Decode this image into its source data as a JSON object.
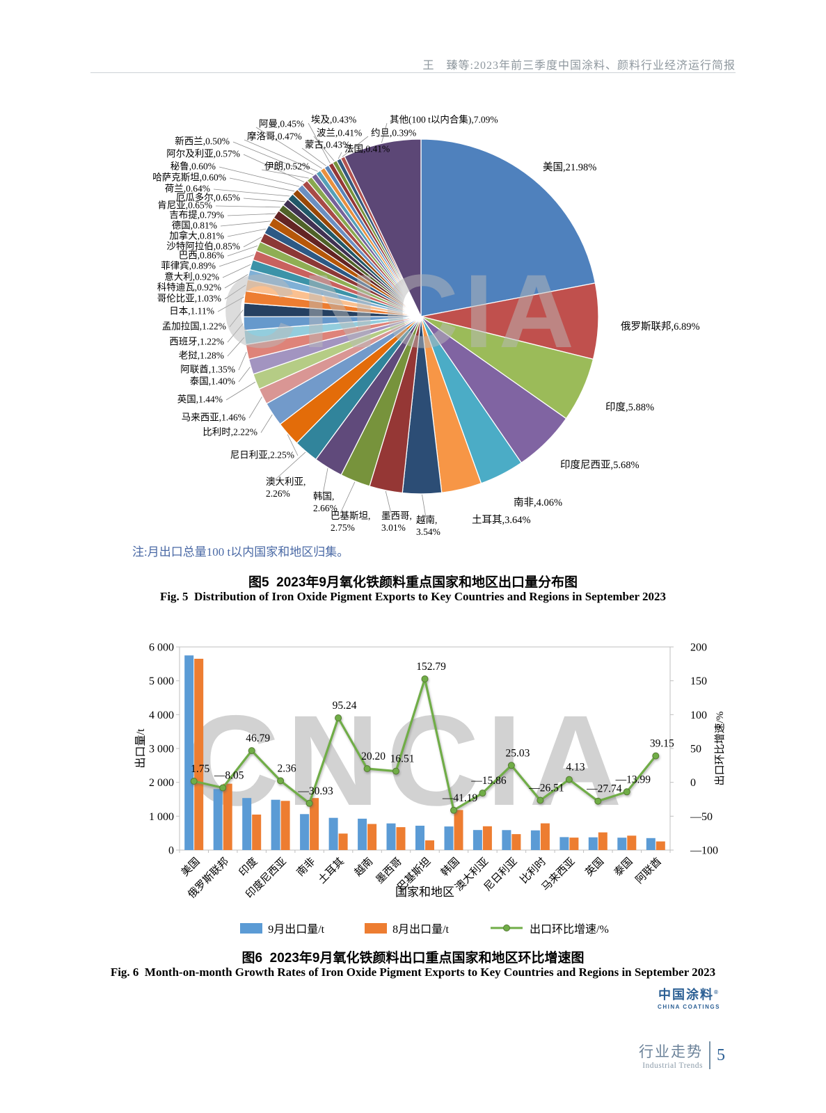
{
  "header": {
    "title": "王　臻等:2023年前三季度中国涂料、颜料行业经济运行简报"
  },
  "pie_note": "注:月出口总量100 t以内国家和地区归集。",
  "figure5": {
    "caption_zh": "图5  2023年9月氧化铁颜料重点国家和地区出口量分布图",
    "caption_en": "Fig. 5  Distribution of Iron Oxide Pigment Exports to Key Countries and Regions in September 2023"
  },
  "figure6": {
    "caption_zh": "图6  2023年9月氧化铁颜料出口重点国家和地区环比增速图",
    "caption_en": "Fig. 6  Month-on-month Growth Rates of Iron Oxide Pigment Exports to Key Countries and Regions in September 2023"
  },
  "footer": {
    "brand_zh": "中国涂料",
    "brand_en": "CHINA COATINGS",
    "section_zh": "行业走势",
    "section_en": "Industrial Trends",
    "page_number": "5"
  },
  "watermark": "CNCIA",
  "chart_data": [
    {
      "type": "pie",
      "title": "2023年9月氧化铁颜料重点国家和地区出口量分布图",
      "unit": "%",
      "labels": [
        "美国",
        "俄罗斯联邦",
        "印度",
        "印度尼西亚",
        "南非",
        "土耳其",
        "越南",
        "墨西哥",
        "巴基斯坦",
        "韩国",
        "澳大利亚",
        "尼日利亚",
        "比利时",
        "马来西亚",
        "英国",
        "泰国",
        "阿联酋",
        "老挝",
        "西班牙",
        "孟加拉国",
        "日本",
        "哥伦比亚",
        "科特迪瓦",
        "意大利",
        "菲律宾",
        "巴西",
        "沙特阿拉伯",
        "加拿大",
        "德国",
        "吉布提",
        "肯尼亚",
        "厄瓜多尔",
        "荷兰",
        "哈萨克斯坦",
        "秘鲁",
        "阿尔及利亚",
        "伊朗",
        "新西兰",
        "摩洛哥",
        "阿曼",
        "蒙古",
        "埃及",
        "波兰",
        "法国",
        "约旦",
        "其他(100 t以内合集)"
      ],
      "values": [
        21.98,
        6.89,
        5.88,
        5.68,
        4.06,
        3.64,
        3.54,
        3.01,
        2.75,
        2.66,
        2.26,
        2.25,
        2.22,
        1.46,
        1.44,
        1.4,
        1.35,
        1.28,
        1.22,
        1.22,
        1.11,
        1.03,
        0.92,
        0.92,
        0.89,
        0.86,
        0.85,
        0.81,
        0.81,
        0.79,
        0.65,
        0.65,
        0.64,
        0.6,
        0.6,
        0.57,
        0.52,
        0.5,
        0.47,
        0.45,
        0.43,
        0.43,
        0.41,
        0.41,
        0.39,
        7.09
      ],
      "colors": [
        "#4F81BD",
        "#C0504D",
        "#9BBB59",
        "#8064A2",
        "#4BACC6",
        "#F79646",
        "#2C4D75",
        "#953735",
        "#77933C",
        "#604A7B",
        "#31849B",
        "#E36C09",
        "#729ACA",
        "#D99694",
        "#B5CC85",
        "#A294C0",
        "#DE8379",
        "#93CDDD",
        "#6699CC",
        "#254061",
        "#ED7D31",
        "#FAC090",
        "#7FB0D6",
        "#3C93A8",
        "#C9615E",
        "#8FAE54",
        "#8C3836",
        "#2C5985",
        "#B65708",
        "#632423",
        "#4F6228",
        "#403152",
        "#215868",
        "#984807",
        "#6B8FC1",
        "#A84A47",
        "#89A84F",
        "#75619A",
        "#55A0B8",
        "#E8903F",
        "#5A84B8",
        "#953735",
        "#77933C",
        "#35597F",
        "#B2534F",
        "#5C4776"
      ],
      "legend_position": "none"
    },
    {
      "type": "bar+line",
      "categories": [
        "美国",
        "俄罗斯联邦",
        "印度",
        "印度尼西亚",
        "南非",
        "土耳其",
        "越南",
        "墨西哥",
        "巴基斯坦",
        "韩国",
        "澳大利亚",
        "尼日利亚",
        "比利时",
        "马来西亚",
        "英国",
        "泰国",
        "阿联酋"
      ],
      "series": [
        {
          "name": "9月出口量/t",
          "type": "bar",
          "color": "#5B9BD5",
          "values": [
            5750,
            1803,
            1538,
            1486,
            1062,
            952,
            926,
            787,
            719,
            696,
            591,
            589,
            581,
            382,
            377,
            366,
            353
          ]
        },
        {
          "name": "8月出口量/t",
          "type": "bar",
          "color": "#ED7D31",
          "values": [
            5651,
            1961,
            1048,
            1452,
            1538,
            488,
            770,
            676,
            285,
            1183,
            703,
            471,
            790,
            367,
            522,
            425,
            254
          ]
        },
        {
          "name": "出口环比增速/%",
          "type": "line",
          "color": "#70AD47",
          "values": [
            1.75,
            -8.05,
            46.79,
            2.36,
            -30.93,
            95.24,
            20.2,
            16.51,
            152.79,
            -41.19,
            -15.86,
            25.03,
            -26.51,
            4.13,
            -27.74,
            -13.99,
            39.15
          ]
        }
      ],
      "xlabel": "国家和地区",
      "ylabel_left": "出口量/t",
      "ylabel_right": "出口环比增速/%",
      "ylim_left": [
        0,
        6000
      ],
      "ylim_right": [
        -100,
        200
      ],
      "yticks_left": [
        0,
        1000,
        2000,
        3000,
        4000,
        5000,
        6000
      ],
      "yticks_right": [
        200,
        150,
        100,
        50,
        0,
        -50,
        -100
      ],
      "grid": false
    }
  ]
}
